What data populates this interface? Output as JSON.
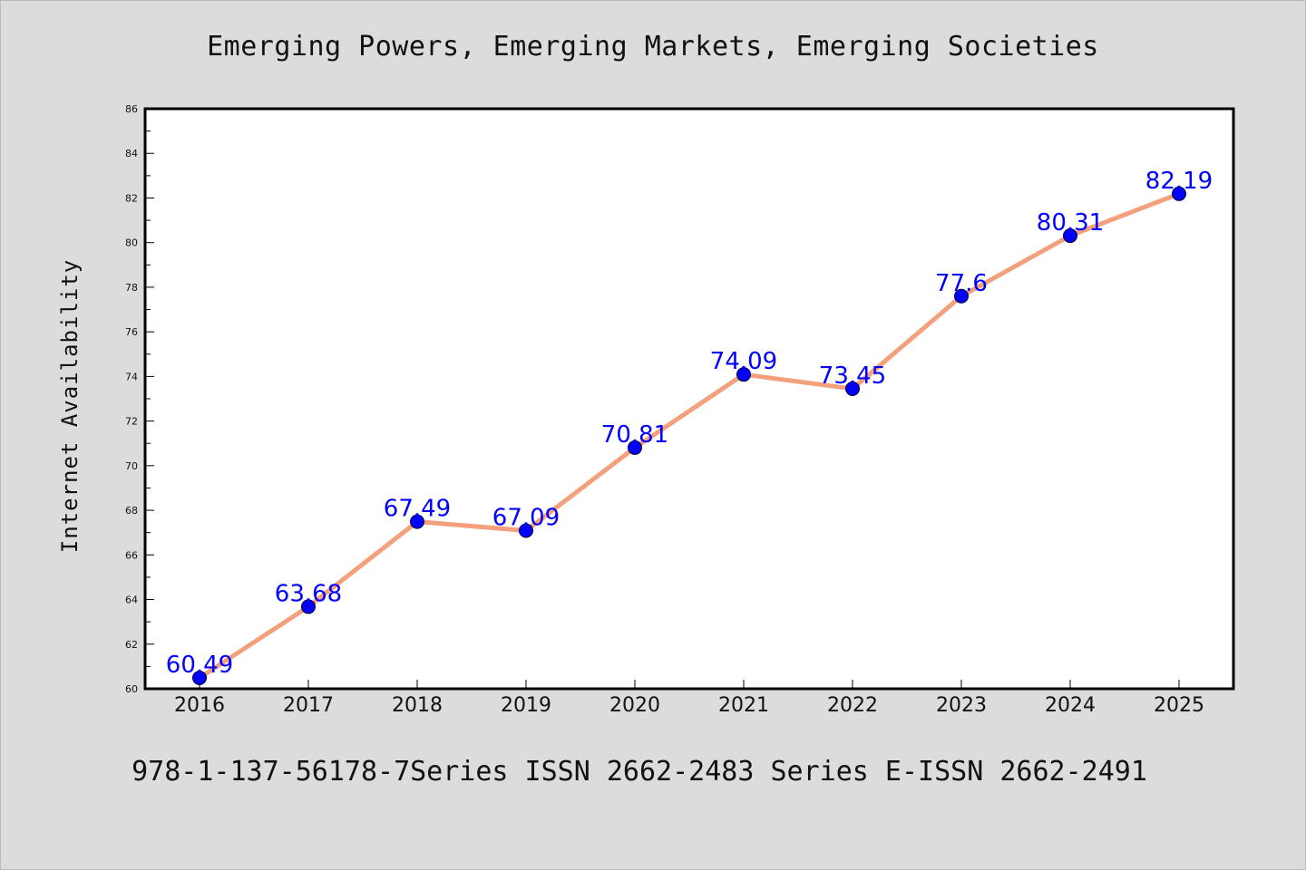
{
  "header": {
    "title": "Emerging Powers, Emerging Markets, Emerging Societies"
  },
  "footer": {
    "text": "978-1-137-56178-7Series ISSN 2662-2483 Series E-ISSN 2662-2491"
  },
  "colors": {
    "background": "#dcdcdc",
    "plot_background": "#ffffff",
    "line": "#f4a07c",
    "marker": "#0000ff",
    "data_label": "#0000ff",
    "axis": "#000000"
  },
  "chart_data": {
    "type": "line",
    "title": "Emerging Powers, Emerging Markets, Emerging Societies",
    "xlabel": "",
    "ylabel": "Internet Availability",
    "categories": [
      "2016",
      "2017",
      "2018",
      "2019",
      "2020",
      "2021",
      "2022",
      "2023",
      "2024",
      "2025"
    ],
    "series": [
      {
        "values": [
          60.49,
          63.68,
          67.49,
          67.09,
          70.81,
          74.09,
          73.45,
          77.6,
          80.31,
          82.19
        ],
        "labels": [
          "60.49",
          "63.68",
          "67.49",
          "67.09",
          "70.81",
          "74.09",
          "73.45",
          "77.6",
          "80.31",
          "82.19"
        ]
      }
    ],
    "ylim": [
      60,
      86
    ],
    "yticks": [
      "60",
      "62",
      "64",
      "66",
      "68",
      "70",
      "72",
      "74",
      "76",
      "78",
      "80",
      "82",
      "84",
      "86"
    ],
    "grid": false,
    "legend": "none"
  }
}
